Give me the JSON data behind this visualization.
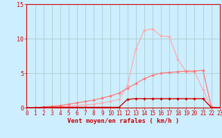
{
  "x": [
    0,
    1,
    2,
    3,
    4,
    5,
    6,
    7,
    8,
    9,
    10,
    11,
    12,
    13,
    14,
    15,
    16,
    17,
    18,
    19,
    20,
    21,
    22,
    23
  ],
  "line_dark": [
    0.0,
    0.0,
    0.05,
    0.05,
    0.05,
    0.05,
    0.05,
    0.05,
    0.05,
    0.05,
    0.05,
    0.05,
    1.2,
    1.3,
    1.3,
    1.3,
    1.3,
    1.3,
    1.3,
    1.3,
    1.3,
    1.3,
    0.0,
    0.0
  ],
  "line_mid": [
    0.0,
    0.0,
    0.1,
    0.2,
    0.3,
    0.5,
    0.7,
    0.9,
    1.1,
    1.4,
    1.7,
    2.1,
    2.8,
    3.5,
    4.2,
    4.7,
    5.0,
    5.1,
    5.2,
    5.3,
    5.3,
    5.4,
    0.1,
    0.0
  ],
  "line_light": [
    0.0,
    0.0,
    0.05,
    0.1,
    0.15,
    0.2,
    0.3,
    0.4,
    0.5,
    0.7,
    0.9,
    1.2,
    3.2,
    8.5,
    11.2,
    11.4,
    10.4,
    10.3,
    7.0,
    5.2,
    5.2,
    2.6,
    0.0,
    0.0
  ],
  "color_dark": "#cc0000",
  "color_light": "#ffaaaa",
  "color_mid": "#ff7777",
  "bg_color": "#cceeff",
  "grid_color": "#aacccc",
  "axis_color": "#cc0000",
  "xlabel": "Vent moyen/en rafales ( km/h )",
  "ylabel_ticks": [
    0,
    5,
    10,
    15
  ],
  "xlim": [
    0,
    23
  ],
  "ylim": [
    0,
    15
  ],
  "title_fontsize": 6,
  "tick_fontsize": 5.5,
  "label_fontsize": 6.5
}
